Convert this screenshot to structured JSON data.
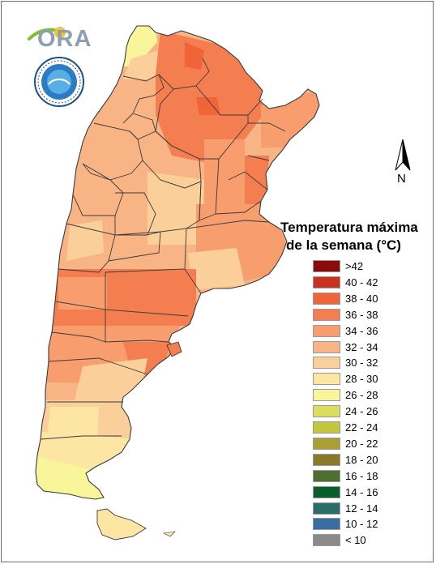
{
  "logo": {
    "text": "ORA"
  },
  "north_arrow": {
    "label": "N"
  },
  "legend": {
    "title_line1": "Temperatura máxima",
    "title_line2": "de la semana (°C)",
    "items": [
      {
        "label": ">42",
        "color": "#8b0a0a"
      },
      {
        "label": "40 - 42",
        "color": "#c8321e"
      },
      {
        "label": "38 - 40",
        "color": "#f0643a"
      },
      {
        "label": "36 - 38",
        "color": "#f47e50"
      },
      {
        "label": "34 - 36",
        "color": "#f79d6e"
      },
      {
        "label": "32 - 34",
        "color": "#f9b486"
      },
      {
        "label": "30 - 32",
        "color": "#fbcf9a"
      },
      {
        "label": "28 - 30",
        "color": "#fde6a4"
      },
      {
        "label": "26 - 28",
        "color": "#f8f59b"
      },
      {
        "label": "24 - 26",
        "color": "#dcdc5e"
      },
      {
        "label": "22 - 24",
        "color": "#c2c63a"
      },
      {
        "label": "20 - 22",
        "color": "#aa9e34"
      },
      {
        "label": "18 - 20",
        "color": "#8c7a2c"
      },
      {
        "label": "16 - 18",
        "color": "#4e6e2e"
      },
      {
        "label": "14 - 16",
        "color": "#0a5e2a"
      },
      {
        "label": "12 - 14",
        "color": "#2a6e6a"
      },
      {
        "label": "10 - 12",
        "color": "#3a6ea0"
      },
      {
        "label": "< 10",
        "color": "#8a8a8a"
      }
    ]
  },
  "map_colors": {
    "outline": "#3a3a3a",
    "band_28_30": "#fde6a4",
    "band_26_28": "#f8f59b",
    "band_30_32": "#fbcf9a",
    "band_32_34": "#f9b486",
    "band_34_36": "#f79d6e",
    "band_36_38": "#f47e50",
    "band_38_40": "#f0643a"
  }
}
